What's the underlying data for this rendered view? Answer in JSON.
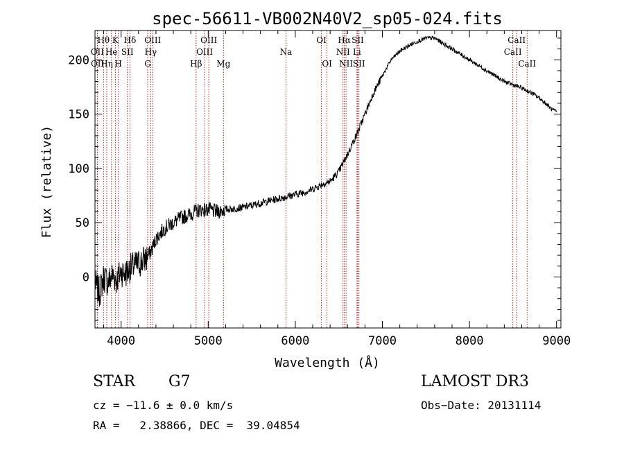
{
  "chart_data": {
    "type": "line",
    "title": "spec-56611-VB002N40V2_sp05-024.fits",
    "xlabel": "Wavelength (Å)",
    "ylabel": "Flux (relative)",
    "xlim": [
      3700,
      9050
    ],
    "ylim": [
      -47,
      227
    ],
    "x_ticks": [
      4000,
      5000,
      6000,
      7000,
      8000,
      9000
    ],
    "y_ticks": [
      0,
      50,
      100,
      150,
      200
    ],
    "series": [
      {
        "name": "flux",
        "x": [
          3700,
          3750,
          3800,
          3850,
          3900,
          3950,
          4000,
          4050,
          4100,
          4150,
          4200,
          4250,
          4300,
          4350,
          4400,
          4450,
          4500,
          4600,
          4700,
          4800,
          4900,
          5000,
          5100,
          5200,
          5300,
          5400,
          5500,
          5600,
          5700,
          5800,
          5900,
          6000,
          6100,
          6200,
          6300,
          6400,
          6500,
          6550,
          6600,
          6650,
          6700,
          6750,
          6800,
          6850,
          6900,
          7000,
          7100,
          7200,
          7300,
          7400,
          7500,
          7600,
          7700,
          7800,
          7900,
          8000,
          8100,
          8200,
          8300,
          8400,
          8500,
          8600,
          8700,
          8800,
          8900,
          8950,
          9000
        ],
        "y": [
          -5,
          -15,
          0,
          -5,
          2,
          -3,
          5,
          3,
          8,
          10,
          12,
          15,
          18,
          25,
          35,
          40,
          45,
          50,
          55,
          58,
          62,
          62,
          60,
          62,
          63,
          64,
          66,
          68,
          70,
          72,
          74,
          76,
          78,
          81,
          85,
          88,
          97,
          105,
          113,
          122,
          130,
          140,
          150,
          160,
          170,
          185,
          200,
          208,
          213,
          217,
          220,
          220,
          215,
          210,
          205,
          200,
          195,
          190,
          185,
          180,
          177,
          174,
          170,
          165,
          158,
          154,
          152
        ]
      }
    ],
    "line_marks": [
      {
        "label": "Hθ",
        "x": 3798,
        "row": 1
      },
      {
        "label": "OII",
        "x": 3727,
        "row": 2
      },
      {
        "label": "OII",
        "x": 3729,
        "row": 3
      },
      {
        "label": "He",
        "x": 3889,
        "row": 2
      },
      {
        "label": "Hη",
        "x": 3835,
        "row": 3
      },
      {
        "label": "K",
        "x": 3934,
        "row": 1
      },
      {
        "label": "H",
        "x": 3969,
        "row": 3
      },
      {
        "label": "SII",
        "x": 4072,
        "row": 2
      },
      {
        "label": "Hδ",
        "x": 4102,
        "row": 1
      },
      {
        "label": "OIII",
        "x": 4363,
        "row": 1
      },
      {
        "label": "Hγ",
        "x": 4340,
        "row": 2
      },
      {
        "label": "G",
        "x": 4305,
        "row": 3
      },
      {
        "label": "Hβ",
        "x": 4861,
        "row": 3
      },
      {
        "label": "OIII",
        "x": 5007,
        "row": 1
      },
      {
        "label": "OIII",
        "x": 4959,
        "row": 2
      },
      {
        "label": "Mg",
        "x": 5175,
        "row": 3
      },
      {
        "label": "Na",
        "x": 5893,
        "row": 2
      },
      {
        "label": "OI",
        "x": 6300,
        "row": 1
      },
      {
        "label": "OI",
        "x": 6364,
        "row": 3
      },
      {
        "label": "Hα",
        "x": 6563,
        "row": 1
      },
      {
        "label": "NII",
        "x": 6548,
        "row": 2
      },
      {
        "label": "NII",
        "x": 6583,
        "row": 3
      },
      {
        "label": "SII",
        "x": 6717,
        "row": 1
      },
      {
        "label": "Li",
        "x": 6708,
        "row": 2
      },
      {
        "label": "SII",
        "x": 6731,
        "row": 3
      },
      {
        "label": "CaII",
        "x": 8542,
        "row": 1
      },
      {
        "label": "CaII",
        "x": 8498,
        "row": 2
      },
      {
        "label": "CaII",
        "x": 8662,
        "row": 3
      }
    ]
  },
  "info": {
    "object_class": "STAR",
    "subclass": "G7",
    "survey": "LAMOST DR3",
    "cz": "cz = −11.6 ± 0.0 km/s",
    "obs_date": "Obs−Date: 20131114",
    "coords": "RA =   2.38866, DEC =  39.04854"
  },
  "colors": {
    "line": "#000000",
    "marks": "#b22222"
  }
}
